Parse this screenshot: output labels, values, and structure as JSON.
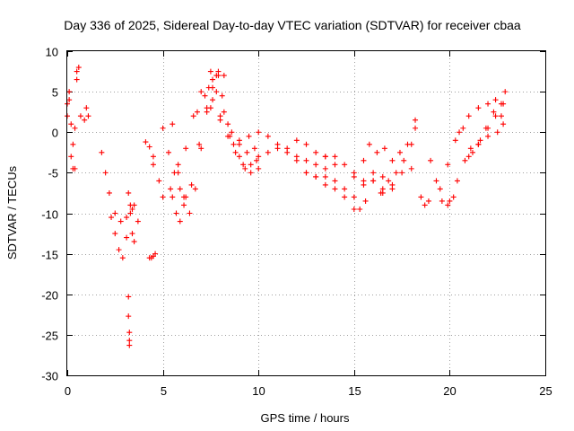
{
  "chart_data": {
    "type": "scatter",
    "title": "Day 336 of 2025, Sidereal Day-to-day VTEC variation (SDTVAR) for receiver cbaa",
    "xlabel": "GPS time / hours",
    "ylabel": "SDTVAR / TECUs",
    "xlim": [
      0,
      25
    ],
    "ylim": [
      -30,
      10
    ],
    "xticks": [
      0,
      5,
      10,
      15,
      20,
      25
    ],
    "yticks": [
      10,
      5,
      0,
      -5,
      -10,
      -15,
      -20,
      -25,
      -30
    ],
    "grid": true,
    "marker": "+",
    "color": "#ff0000",
    "series": [
      {
        "name": "arc-1",
        "x": [
          0.0,
          0.1,
          0.2,
          0.3,
          0.4,
          0.5,
          0.6,
          0.7
        ],
        "y": [
          3.5,
          5.0,
          1.0,
          -1.5,
          -4.5,
          6.5,
          8.0,
          2.0
        ]
      },
      {
        "name": "arc-2",
        "x": [
          0.0,
          0.1,
          0.2,
          0.3,
          0.4,
          0.5
        ],
        "y": [
          2.0,
          4.0,
          -3.0,
          -4.5,
          0.5,
          7.5
        ]
      },
      {
        "name": "arc-3",
        "x": [
          0.9,
          1.0,
          1.1
        ],
        "y": [
          1.5,
          3.0,
          2.0
        ]
      },
      {
        "name": "arc-4",
        "x": [
          1.8,
          2.0,
          2.2
        ],
        "y": [
          -2.5,
          -5.0,
          -7.5
        ]
      },
      {
        "name": "arc-5",
        "x": [
          2.3,
          2.5,
          2.7,
          2.9,
          3.1,
          3.3,
          3.5
        ],
        "y": [
          -10.5,
          -12.5,
          -14.5,
          -15.5,
          -13.0,
          -10.0,
          -9.0
        ]
      },
      {
        "name": "arc-6",
        "x": [
          2.5,
          2.8,
          3.1,
          3.4,
          3.7
        ],
        "y": [
          -10.0,
          -11.0,
          -10.5,
          -9.5,
          -11.0
        ]
      },
      {
        "name": "arc-7",
        "x": [
          3.2,
          3.3,
          3.4,
          3.5
        ],
        "y": [
          -7.5,
          -9.0,
          -12.5,
          -13.5
        ]
      },
      {
        "name": "arc-8",
        "x": [
          3.2,
          3.2,
          3.25,
          3.25,
          3.25
        ],
        "y": [
          -20.3,
          -22.7,
          -24.7,
          -25.7,
          -26.3
        ]
      },
      {
        "name": "arc-9",
        "x": [
          4.1,
          4.3,
          4.5
        ],
        "y": [
          -1.2,
          -1.8,
          -3.0
        ]
      },
      {
        "name": "arc-10",
        "x": [
          4.3,
          4.4,
          4.5,
          4.6
        ],
        "y": [
          -15.5,
          -15.5,
          -15.3,
          -15.0
        ]
      },
      {
        "name": "arc-11",
        "x": [
          4.5,
          4.8,
          5.0,
          5.4,
          5.8,
          6.2,
          6.6
        ],
        "y": [
          -4.0,
          -6.0,
          -8.0,
          -7.0,
          -5.0,
          -2.0,
          2.0
        ]
      },
      {
        "name": "arc-12",
        "x": [
          5.0,
          5.3,
          5.6,
          5.9,
          6.2,
          6.5,
          6.9,
          7.3,
          7.6,
          7.9,
          8.2
        ],
        "y": [
          0.5,
          -2.5,
          -5.0,
          -7.0,
          -8.0,
          -6.5,
          -1.5,
          3.0,
          6.5,
          7.5,
          7.0
        ]
      },
      {
        "name": "arc-13",
        "x": [
          5.5,
          5.8,
          6.1,
          6.4,
          6.7,
          7.0,
          7.3,
          7.6,
          7.9
        ],
        "y": [
          1.0,
          -4.0,
          -8.0,
          -10.0,
          -7.0,
          -2.0,
          2.5,
          5.5,
          7.0
        ]
      },
      {
        "name": "arc-14",
        "x": [
          5.5,
          5.7,
          5.9,
          6.1
        ],
        "y": [
          -8.0,
          -10.0,
          -11.0,
          -9.0
        ]
      },
      {
        "name": "arc-15",
        "x": [
          7.5,
          7.8,
          8.1,
          8.4,
          8.7,
          9.0,
          9.3,
          9.6,
          9.9
        ],
        "y": [
          7.5,
          7.0,
          4.5,
          1.0,
          -1.5,
          -3.0,
          -4.5,
          -4.0,
          -3.5
        ]
      },
      {
        "name": "arc-16",
        "x": [
          7.0,
          7.4,
          7.8,
          8.2,
          8.6,
          9.0,
          9.4,
          9.8
        ],
        "y": [
          5.0,
          5.5,
          5.0,
          2.5,
          0.0,
          -1.5,
          -2.5,
          -2.0
        ]
      },
      {
        "name": "arc-17",
        "x": [
          6.8,
          7.2,
          7.6,
          8.0,
          8.4,
          8.8,
          9.2,
          9.6,
          10.0
        ],
        "y": [
          2.5,
          4.5,
          4.0,
          2.0,
          -0.5,
          -2.5,
          -4.0,
          -5.0,
          -4.5
        ]
      },
      {
        "name": "arc-18",
        "x": [
          7.5,
          8.0,
          8.5,
          9.0,
          9.5,
          10.0
        ],
        "y": [
          3.0,
          1.5,
          -0.5,
          -1.0,
          -0.5,
          0.0
        ]
      },
      {
        "name": "arc-19",
        "x": [
          10.0,
          10.5,
          11.0,
          11.5,
          12.0,
          12.5,
          13.0,
          13.5
        ],
        "y": [
          -3.0,
          -2.5,
          -2.0,
          -2.5,
          -3.0,
          -3.5,
          -4.0,
          -4.5
        ]
      },
      {
        "name": "arc-20",
        "x": [
          10.5,
          11.0,
          11.5,
          12.0,
          12.5,
          13.0,
          13.5,
          14.0
        ],
        "y": [
          -0.5,
          -1.5,
          -2.0,
          -1.0,
          -1.5,
          -2.5,
          -3.0,
          -4.0
        ]
      },
      {
        "name": "arc-21",
        "x": [
          12.0,
          12.5,
          13.0,
          13.5,
          14.0,
          14.5,
          15.0,
          15.5
        ],
        "y": [
          -3.5,
          -5.0,
          -5.5,
          -5.5,
          -6.0,
          -7.0,
          -8.0,
          -6.5
        ]
      },
      {
        "name": "arc-22",
        "x": [
          12.5,
          13.0,
          13.5,
          14.0,
          14.5,
          15.0,
          15.3,
          15.6
        ],
        "y": [
          -5.0,
          -5.5,
          -6.5,
          -7.0,
          -8.0,
          -9.5,
          -9.5,
          -8.5
        ]
      },
      {
        "name": "arc-23",
        "x": [
          13.5,
          14.0,
          14.5,
          15.0,
          15.5,
          16.0,
          16.5
        ],
        "y": [
          -3.0,
          -3.0,
          -4.0,
          -5.5,
          -6.0,
          -6.0,
          -7.0
        ]
      },
      {
        "name": "arc-24",
        "x": [
          15.0,
          15.5,
          16.0,
          16.5,
          17.0
        ],
        "y": [
          -5.0,
          -3.5,
          -5.0,
          -5.5,
          -7.0
        ]
      },
      {
        "name": "arc-25",
        "x": [
          15.8,
          16.2,
          16.6,
          17.0,
          17.4,
          17.8,
          18.2
        ],
        "y": [
          -1.5,
          -2.5,
          -2.0,
          -3.5,
          -2.5,
          -1.5,
          0.5
        ]
      },
      {
        "name": "arc-26",
        "x": [
          16.0,
          16.4,
          16.8,
          17.2,
          17.6,
          18.0,
          18.2
        ],
        "y": [
          -6.0,
          -7.5,
          -6.0,
          -5.0,
          -3.5,
          -1.5,
          1.5
        ]
      },
      {
        "name": "arc-27",
        "x": [
          16.5,
          17.0,
          17.5,
          18.0
        ],
        "y": [
          -7.5,
          -6.5,
          -5.0,
          -4.5
        ]
      },
      {
        "name": "arc-28",
        "x": [
          18.5,
          18.7,
          18.9
        ],
        "y": [
          -8.0,
          -9.0,
          -8.5
        ]
      },
      {
        "name": "arc-29",
        "x": [
          19.0,
          19.3,
          19.6,
          19.9,
          20.2
        ],
        "y": [
          -3.5,
          -6.0,
          -8.5,
          -9.0,
          -8.0
        ]
      },
      {
        "name": "arc-30",
        "x": [
          19.5,
          19.9,
          20.3,
          20.7,
          21.1,
          21.5,
          21.9,
          22.3,
          22.7
        ],
        "y": [
          -7.0,
          -4.0,
          -1.0,
          0.5,
          -2.0,
          -1.5,
          0.5,
          2.5,
          3.5
        ]
      },
      {
        "name": "arc-31",
        "x": [
          20.0,
          20.4,
          20.8,
          21.2,
          21.6,
          22.0,
          22.4
        ],
        "y": [
          -8.5,
          -6.0,
          -3.5,
          -2.5,
          -1.0,
          0.5,
          2.0
        ]
      },
      {
        "name": "arc-32",
        "x": [
          20.5,
          21.0,
          21.5,
          22.0,
          22.4
        ],
        "y": [
          0.0,
          2.0,
          3.0,
          3.5,
          4.0
        ]
      },
      {
        "name": "arc-33",
        "x": [
          21.0,
          21.5,
          22.0,
          22.5,
          22.8
        ],
        "y": [
          -3.0,
          -1.5,
          -0.5,
          0.0,
          1.0
        ]
      },
      {
        "name": "arc-34",
        "x": [
          22.7,
          22.8,
          22.9
        ],
        "y": [
          2.0,
          3.5,
          5.0
        ]
      }
    ]
  }
}
